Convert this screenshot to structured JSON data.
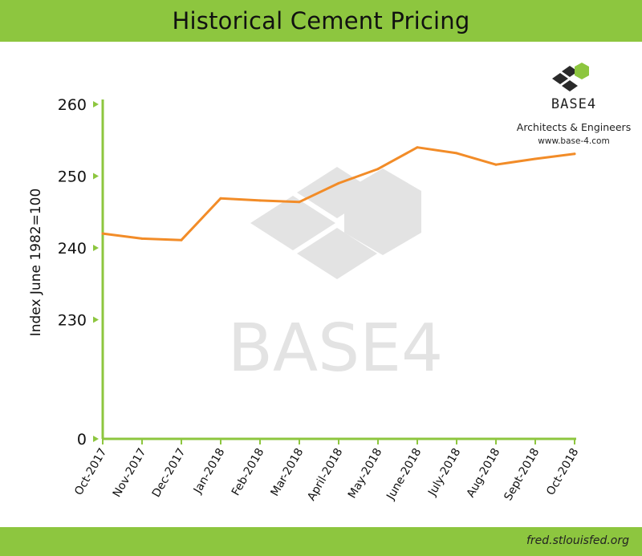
{
  "header": {
    "title": "Historical Cement Pricing"
  },
  "footer": {
    "source": "fred.stlouisfed.org"
  },
  "logo": {
    "name": "BASE4",
    "tagline": "Architects & Engineers",
    "url": "www.base-4.com",
    "watermark_text": "BASE4"
  },
  "colors": {
    "frame": "#8dc63f",
    "line": "#f28c28",
    "axis": "#8dc63f",
    "watermark": "#e3e3e3",
    "logo_dark": "#2a2a2a",
    "logo_green": "#8dc63f"
  },
  "chart_data": {
    "type": "line",
    "title": "Historical Cement Pricing",
    "xlabel": "",
    "ylabel": "Index June 1982=100",
    "categories": [
      "Oct-2017",
      "Nov-2017",
      "Dec-2017",
      "Jan-2018",
      "Feb-2018",
      "Mar-2018",
      "April-2018",
      "May-2018",
      "June-2018",
      "July-2018",
      "Aug-2018",
      "Sept-2018",
      "Oct-2018"
    ],
    "yticks": [
      0,
      230,
      240,
      250,
      260
    ],
    "ytick_labels": [
      "0",
      "230",
      "240",
      "250",
      "260"
    ],
    "axis_break": true,
    "series": [
      {
        "name": "",
        "values": [
          242.0,
          241.3,
          241.1,
          246.9,
          246.6,
          246.4,
          249.0,
          251.0,
          254.0,
          253.2,
          251.6,
          252.4,
          253.1
        ]
      }
    ],
    "grid": false,
    "legend": "none"
  }
}
